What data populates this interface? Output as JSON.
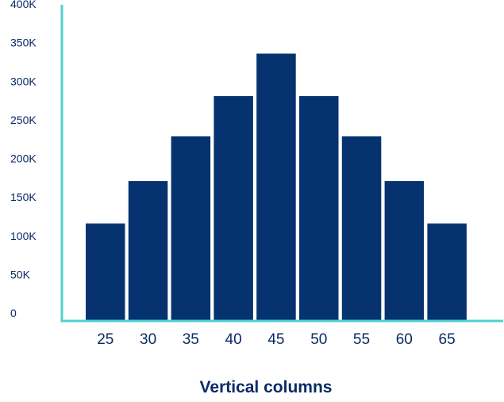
{
  "chart_data": {
    "type": "bar",
    "categories": [
      "25",
      "30",
      "35",
      "40",
      "45",
      "50",
      "55",
      "60",
      "65"
    ],
    "values": [
      125000,
      180000,
      238000,
      290000,
      345000,
      290000,
      238000,
      180000,
      125000
    ],
    "title": "",
    "xlabel": "Vertical columns",
    "ylabel": "",
    "ylim": [
      0,
      400000
    ],
    "y_ticks": [
      {
        "value": 0,
        "label": "0"
      },
      {
        "value": 50000,
        "label": "50K"
      },
      {
        "value": 100000,
        "label": "100K"
      },
      {
        "value": 150000,
        "label": "150K"
      },
      {
        "value": 200000,
        "label": "200K"
      },
      {
        "value": 250000,
        "label": "250K"
      },
      {
        "value": 300000,
        "label": "300K"
      },
      {
        "value": 350000,
        "label": "350K"
      },
      {
        "value": 400000,
        "label": "400K"
      }
    ],
    "grid": false,
    "legend": "none",
    "colors": {
      "bar": "#06336f",
      "axis": "#4fd1d0",
      "text": "#0a2a66"
    }
  }
}
